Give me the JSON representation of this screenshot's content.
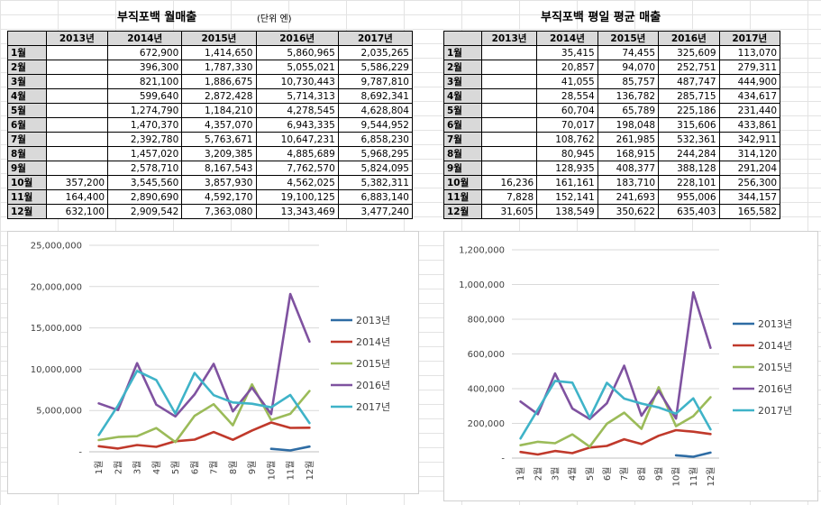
{
  "left": {
    "title": "부직포백 월매출",
    "unit": "(단위 엔)",
    "headers": [
      "",
      "2013년",
      "2014년",
      "2015년",
      "2016년",
      "2017년"
    ],
    "rows": [
      [
        "1월",
        "",
        "672,900",
        "1,414,650",
        "5,860,965",
        "2,035,265"
      ],
      [
        "2월",
        "",
        "396,300",
        "1,787,330",
        "5,055,021",
        "5,586,229"
      ],
      [
        "3월",
        "",
        "821,100",
        "1,886,675",
        "10,730,443",
        "9,787,810"
      ],
      [
        "4월",
        "",
        "599,640",
        "2,872,428",
        "5,714,313",
        "8,692,341"
      ],
      [
        "5월",
        "",
        "1,274,790",
        "1,184,210",
        "4,278,545",
        "4,628,804"
      ],
      [
        "6월",
        "",
        "1,470,370",
        "4,357,070",
        "6,943,335",
        "9,544,952"
      ],
      [
        "7월",
        "",
        "2,392,780",
        "5,763,671",
        "10,647,231",
        "6,858,230"
      ],
      [
        "8월",
        "",
        "1,457,020",
        "3,209,385",
        "4,885,689",
        "5,968,295"
      ],
      [
        "9월",
        "",
        "2,578,710",
        "8,167,543",
        "7,762,570",
        "5,824,095"
      ],
      [
        "10월",
        "357,200",
        "3,545,560",
        "3,857,930",
        "4,562,025",
        "5,382,311"
      ],
      [
        "11월",
        "164,400",
        "2,890,690",
        "4,592,170",
        "19,100,125",
        "6,883,140"
      ],
      [
        "12월",
        "632,100",
        "2,909,542",
        "7,363,080",
        "13,343,469",
        "3,477,240"
      ]
    ]
  },
  "right": {
    "title": "부직포백 평일 평균 매출",
    "headers": [
      "",
      "2013년",
      "2014년",
      "2015년",
      "2016년",
      "2017년"
    ],
    "rows": [
      [
        "1월",
        "",
        "35,415",
        "74,455",
        "325,609",
        "113,070"
      ],
      [
        "2월",
        "",
        "20,857",
        "94,070",
        "252,751",
        "279,311"
      ],
      [
        "3월",
        "",
        "41,055",
        "85,757",
        "487,747",
        "444,900"
      ],
      [
        "4월",
        "",
        "28,554",
        "136,782",
        "285,715",
        "434,617"
      ],
      [
        "5월",
        "",
        "60,704",
        "65,789",
        "225,186",
        "231,440"
      ],
      [
        "6월",
        "",
        "70,017",
        "198,048",
        "315,606",
        "433,861"
      ],
      [
        "7월",
        "",
        "108,762",
        "261,985",
        "532,361",
        "342,911"
      ],
      [
        "8월",
        "",
        "80,945",
        "168,915",
        "244,284",
        "314,120"
      ],
      [
        "9월",
        "",
        "128,935",
        "408,377",
        "388,128",
        "291,204"
      ],
      [
        "10월",
        "16,236",
        "161,161",
        "183,710",
        "228,101",
        "256,300"
      ],
      [
        "11월",
        "7,828",
        "152,141",
        "241,693",
        "955,006",
        "344,157"
      ],
      [
        "12월",
        "31,605",
        "138,549",
        "350,622",
        "635,403",
        "165,582"
      ]
    ]
  },
  "chart_data": [
    {
      "type": "line",
      "title": "",
      "categories": [
        "1월",
        "2월",
        "3월",
        "4월",
        "5월",
        "6월",
        "7월",
        "8월",
        "9월",
        "10월",
        "11월",
        "12월"
      ],
      "ylim": [
        0,
        25000000
      ],
      "yticks": [
        0,
        5000000,
        10000000,
        15000000,
        20000000,
        25000000
      ],
      "ytick_labels": [
        "-",
        "5,000,000",
        "10,000,000",
        "15,000,000",
        "20,000,000",
        "25,000,000"
      ],
      "legend_position": "right",
      "series": [
        {
          "name": "2013년",
          "color": "#2e6ca4",
          "values": [
            null,
            null,
            null,
            null,
            null,
            null,
            null,
            null,
            null,
            357200,
            164400,
            632100
          ]
        },
        {
          "name": "2014년",
          "color": "#c0392b",
          "values": [
            672900,
            396300,
            821100,
            599640,
            1274790,
            1470370,
            2392780,
            1457020,
            2578710,
            3545560,
            2890690,
            2909542
          ]
        },
        {
          "name": "2015년",
          "color": "#9bbb59",
          "values": [
            1414650,
            1787330,
            1886675,
            2872428,
            1184210,
            4357070,
            5763671,
            3209385,
            8167543,
            3857930,
            4592170,
            7363080
          ]
        },
        {
          "name": "2016년",
          "color": "#7f52a0",
          "values": [
            5860965,
            5055021,
            10730443,
            5714313,
            4278545,
            6943335,
            10647231,
            4885689,
            7762570,
            4562025,
            19100125,
            13343469
          ]
        },
        {
          "name": "2017년",
          "color": "#3fb3c8",
          "values": [
            2035265,
            5586229,
            9787810,
            8692341,
            4628804,
            9544952,
            6858230,
            5968295,
            5824095,
            5382311,
            6883140,
            3477240
          ]
        }
      ]
    },
    {
      "type": "line",
      "title": "",
      "categories": [
        "1월",
        "2월",
        "3월",
        "4월",
        "5월",
        "6월",
        "7월",
        "8월",
        "9월",
        "10월",
        "11월",
        "12월"
      ],
      "ylim": [
        0,
        1200000
      ],
      "yticks": [
        0,
        200000,
        400000,
        600000,
        800000,
        1000000,
        1200000
      ],
      "ytick_labels": [
        "-",
        "200,000",
        "400,000",
        "600,000",
        "800,000",
        "1,000,000",
        "1,200,000"
      ],
      "legend_position": "right",
      "series": [
        {
          "name": "2013년",
          "color": "#2e6ca4",
          "values": [
            null,
            null,
            null,
            null,
            null,
            null,
            null,
            null,
            null,
            16236,
            7828,
            31605
          ]
        },
        {
          "name": "2014년",
          "color": "#c0392b",
          "values": [
            35415,
            20857,
            41055,
            28554,
            60704,
            70017,
            108762,
            80945,
            128935,
            161161,
            152141,
            138549
          ]
        },
        {
          "name": "2015년",
          "color": "#9bbb59",
          "values": [
            74455,
            94070,
            85757,
            136782,
            65789,
            198048,
            261985,
            168915,
            408377,
            183710,
            241693,
            350622
          ]
        },
        {
          "name": "2016년",
          "color": "#7f52a0",
          "values": [
            325609,
            252751,
            487747,
            285715,
            225186,
            315606,
            532361,
            244284,
            388128,
            228101,
            955006,
            635403
          ]
        },
        {
          "name": "2017년",
          "color": "#3fb3c8",
          "values": [
            113070,
            279311,
            444900,
            434617,
            231440,
            433861,
            342911,
            314120,
            291204,
            256300,
            344157,
            165582
          ]
        }
      ]
    }
  ]
}
